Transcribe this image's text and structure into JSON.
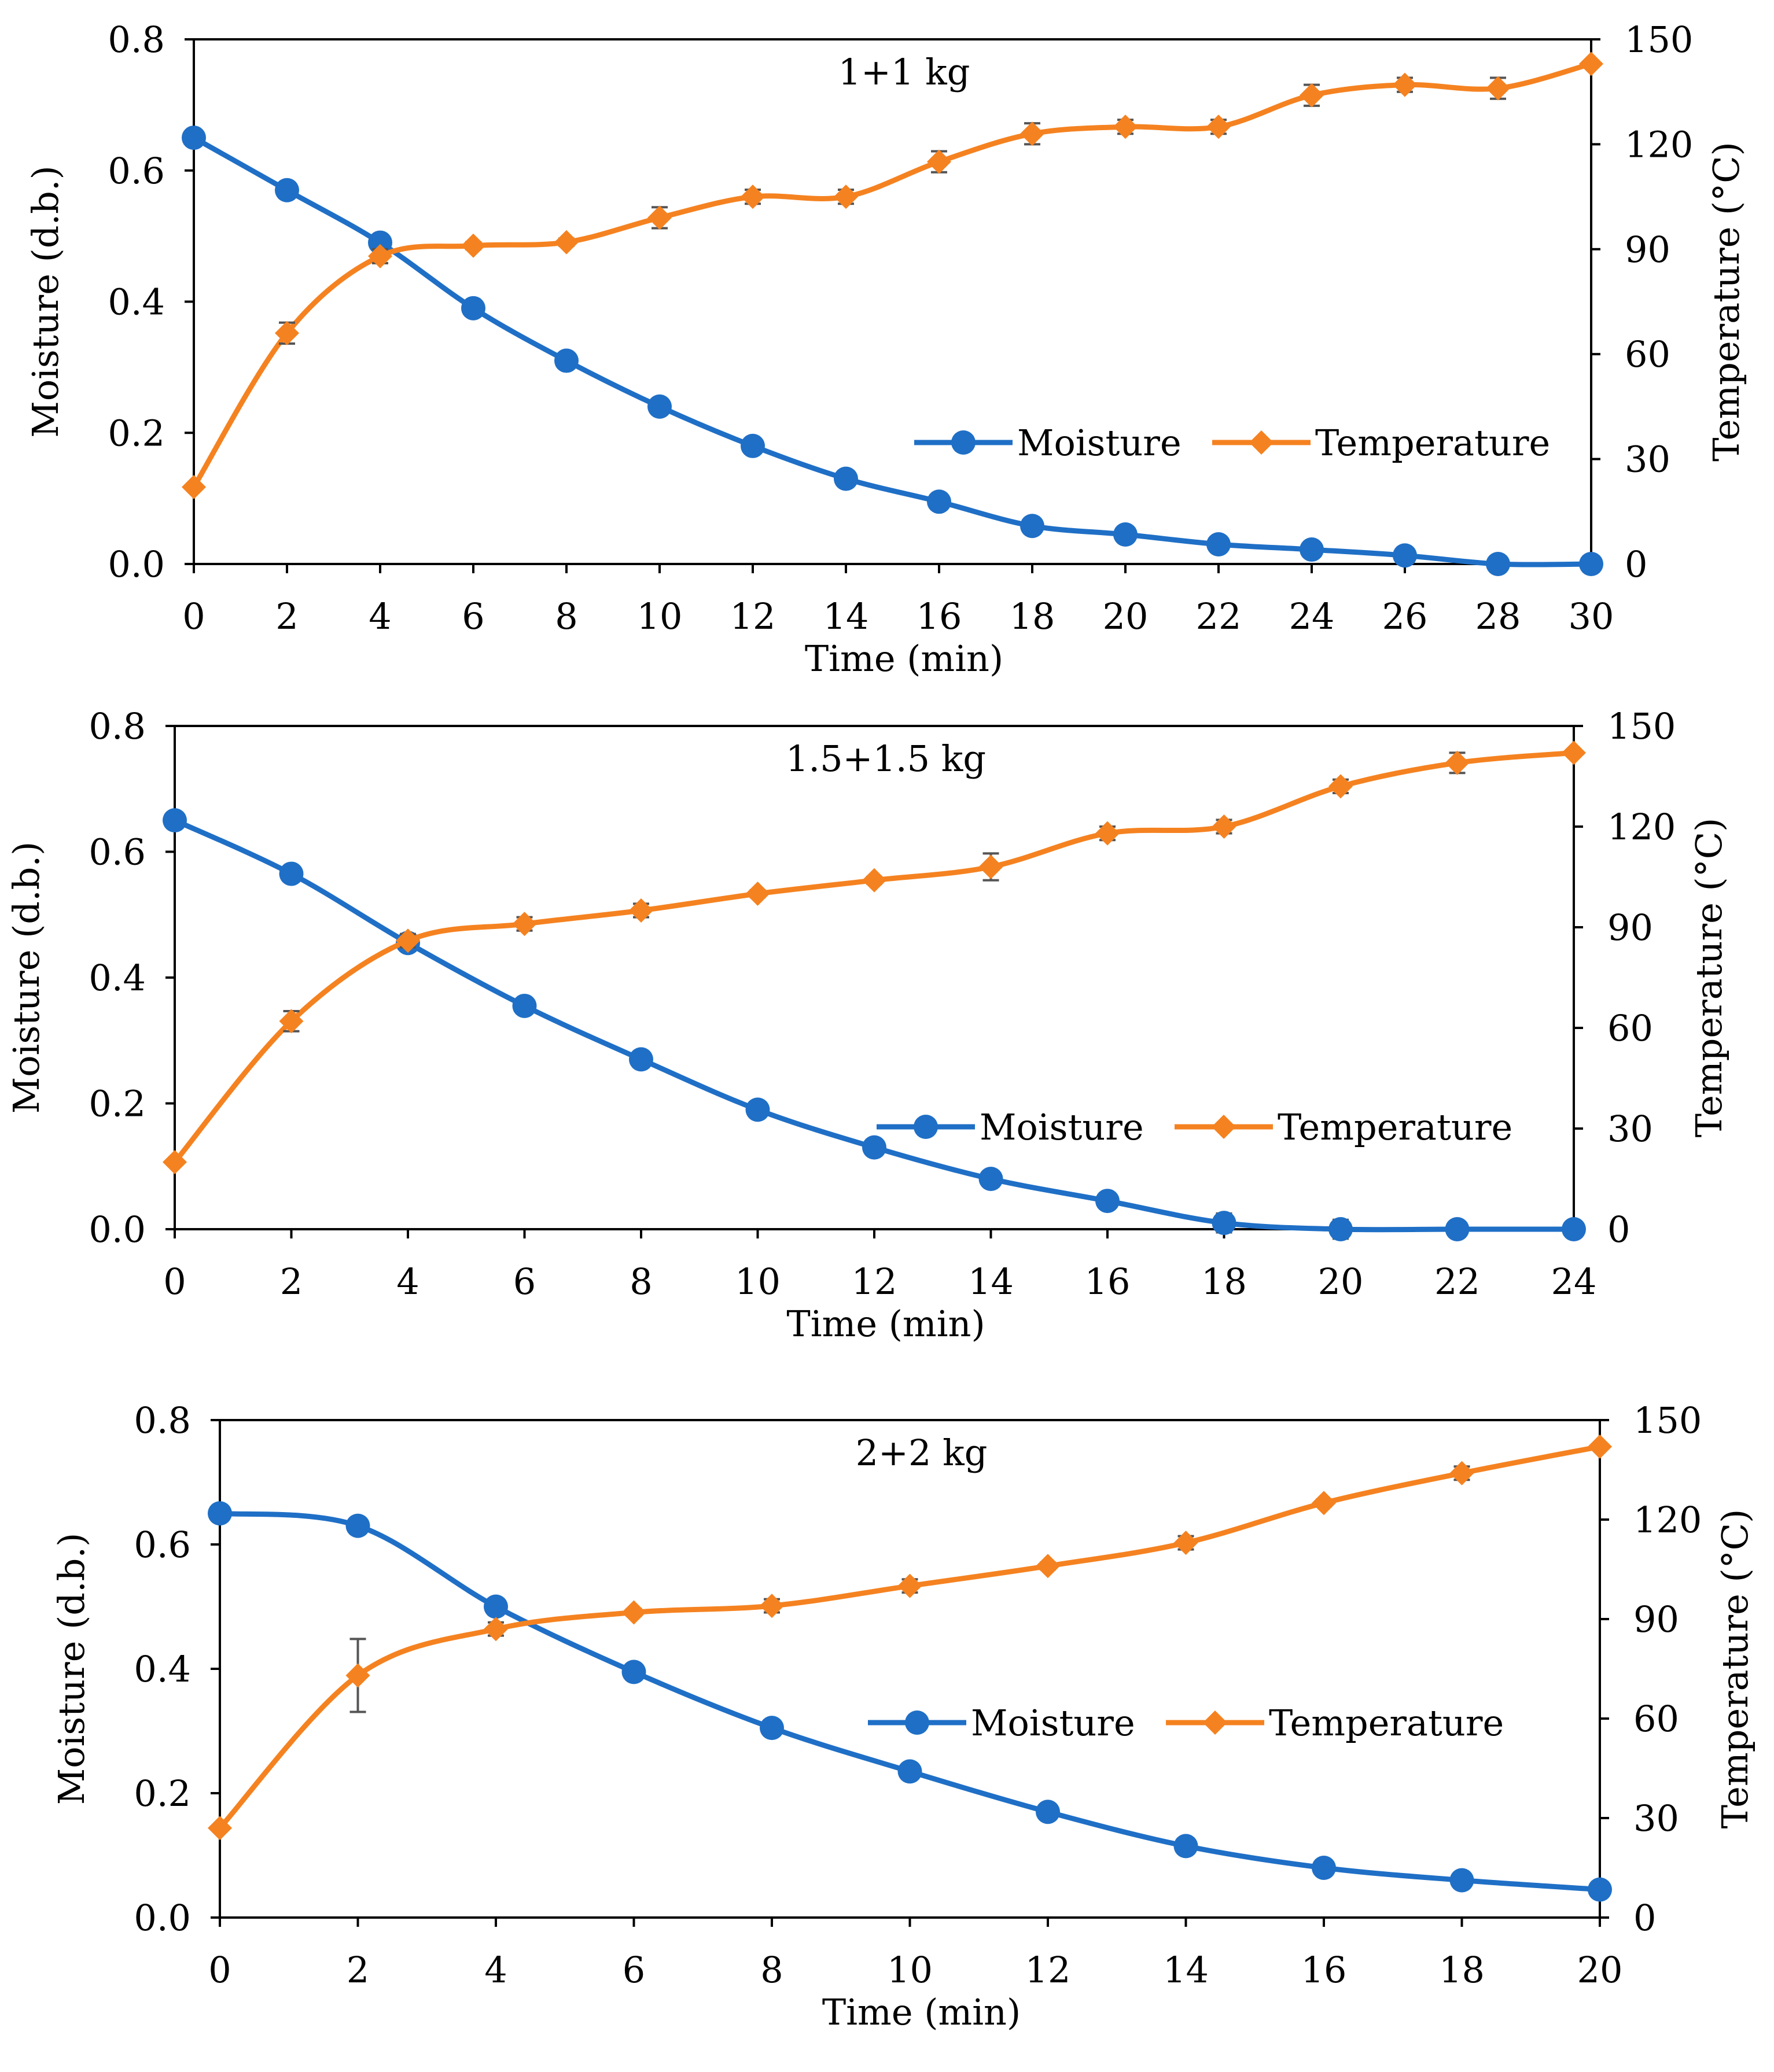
{
  "chart_data": [
    {
      "type": "line",
      "title": "1+1 kg",
      "xlabel": "Time (min)",
      "ylabel": "Moisture (d.b.)",
      "y2label": "Temperature (°C)",
      "xlim": [
        0,
        30
      ],
      "ylim": [
        0,
        0.8
      ],
      "y2lim": [
        0,
        150
      ],
      "x_ticks": [
        "0",
        "2",
        "4",
        "6",
        "8",
        "10",
        "12",
        "14",
        "16",
        "18",
        "20",
        "22",
        "24",
        "26",
        "28",
        "30"
      ],
      "y_ticks": [
        "0.0",
        "0.2",
        "0.4",
        "0.6",
        "0.8"
      ],
      "y2_ticks": [
        "0",
        "30",
        "60",
        "90",
        "120",
        "150"
      ],
      "legend": [
        "Moisture",
        "Temperature"
      ],
      "legend_position": "center-right",
      "series": [
        {
          "name": "Moisture",
          "axis": "left",
          "color": "#1F6FC6",
          "marker": "circle",
          "x": [
            0,
            2,
            4,
            6,
            8,
            10,
            12,
            14,
            16,
            18,
            20,
            22,
            24,
            26,
            28,
            30
          ],
          "values": [
            0.65,
            0.57,
            0.49,
            0.39,
            0.31,
            0.24,
            0.18,
            0.13,
            0.095,
            0.058,
            0.045,
            0.03,
            0.022,
            0.013,
            0.0,
            0.0
          ],
          "errors": [
            0,
            0.008,
            0.008,
            0.008,
            0.008,
            0.008,
            0.008,
            0.008,
            0.008,
            0.005,
            0.005,
            0.005,
            0.005,
            0.005,
            0.003,
            0
          ]
        },
        {
          "name": "Temperature",
          "axis": "right",
          "color": "#F58220",
          "marker": "diamond",
          "x": [
            0,
            2,
            4,
            6,
            8,
            10,
            12,
            14,
            16,
            18,
            20,
            22,
            24,
            26,
            28,
            30
          ],
          "values": [
            22,
            66,
            88,
            91,
            92,
            99,
            105,
            105,
            115,
            123,
            125,
            125,
            134,
            137,
            136,
            143
          ],
          "errors": [
            0,
            3,
            2,
            1,
            1,
            3,
            2,
            2,
            3,
            3,
            2,
            2,
            3,
            2,
            3,
            0
          ]
        }
      ]
    },
    {
      "type": "line",
      "title": "1.5+1.5 kg",
      "xlabel": "Time (min)",
      "ylabel": "Moisture  (d.b.)",
      "y2label": "Temperature (°C)",
      "xlim": [
        0,
        24
      ],
      "ylim": [
        0,
        0.8
      ],
      "y2lim": [
        0,
        150
      ],
      "x_ticks": [
        "0",
        "2",
        "4",
        "6",
        "8",
        "10",
        "12",
        "14",
        "16",
        "18",
        "20",
        "22",
        "24"
      ],
      "y_ticks": [
        "0.0",
        "0.2",
        "0.4",
        "0.6",
        "0.8"
      ],
      "y2_ticks": [
        "0",
        "30",
        "60",
        "90",
        "120",
        "150"
      ],
      "legend": [
        "Moisture",
        "Temperature"
      ],
      "legend_position": "lower-right",
      "series": [
        {
          "name": "Moisture",
          "axis": "left",
          "color": "#1F6FC6",
          "marker": "circle",
          "x": [
            0,
            2,
            4,
            6,
            8,
            10,
            12,
            14,
            16,
            18,
            20,
            22,
            24
          ],
          "values": [
            0.65,
            0.565,
            0.455,
            0.355,
            0.27,
            0.19,
            0.13,
            0.08,
            0.045,
            0.01,
            0.0,
            0.0,
            0.0
          ],
          "errors": [
            0,
            0.006,
            0.006,
            0.006,
            0.006,
            0.006,
            0.006,
            0.006,
            0.006,
            0.015,
            0.015,
            0.004,
            0
          ]
        },
        {
          "name": "Temperature",
          "axis": "right",
          "color": "#F58220",
          "marker": "diamond",
          "x": [
            0,
            2,
            4,
            6,
            8,
            10,
            12,
            14,
            16,
            18,
            20,
            22,
            24
          ],
          "values": [
            20,
            62,
            86,
            91,
            95,
            100,
            104,
            108,
            118,
            120,
            132,
            139,
            142
          ],
          "errors": [
            0,
            3,
            2,
            2,
            2,
            1,
            1,
            4,
            2,
            2,
            2,
            3,
            0
          ]
        }
      ]
    },
    {
      "type": "line",
      "title": "2+2 kg",
      "xlabel": "Time (min)",
      "ylabel": "Moisture (d.b.)",
      "y2label": "Temperature (°C)",
      "xlim": [
        0,
        20
      ],
      "ylim": [
        0,
        0.8
      ],
      "y2lim": [
        0,
        150
      ],
      "x_ticks": [
        "0",
        "2",
        "4",
        "6",
        "8",
        "10",
        "12",
        "14",
        "16",
        "18",
        "20"
      ],
      "y_ticks": [
        "0.0",
        "0.2",
        "0.4",
        "0.6",
        "0.8"
      ],
      "y2_ticks": [
        "0",
        "30",
        "60",
        "90",
        "120",
        "150"
      ],
      "legend": [
        "Moisture",
        "Temperature"
      ],
      "legend_position": "center-right",
      "series": [
        {
          "name": "Moisture",
          "axis": "left",
          "color": "#1F6FC6",
          "marker": "circle",
          "x": [
            0,
            2,
            4,
            6,
            8,
            10,
            12,
            14,
            16,
            18,
            20
          ],
          "values": [
            0.65,
            0.63,
            0.5,
            0.395,
            0.305,
            0.235,
            0.17,
            0.115,
            0.08,
            0.06,
            0.045
          ],
          "errors": [
            0,
            0.008,
            0.008,
            0.006,
            0.006,
            0.006,
            0.005,
            0.005,
            0.005,
            0.005,
            0
          ]
        },
        {
          "name": "Temperature",
          "axis": "right",
          "color": "#F58220",
          "marker": "diamond",
          "x": [
            0,
            2,
            4,
            6,
            8,
            10,
            12,
            14,
            16,
            18,
            20
          ],
          "values": [
            27,
            73,
            87,
            92,
            94,
            100,
            106,
            113,
            125,
            134,
            142
          ],
          "errors": [
            0,
            11,
            2,
            1,
            2,
            2,
            1,
            2,
            1,
            2,
            0
          ]
        }
      ]
    }
  ]
}
